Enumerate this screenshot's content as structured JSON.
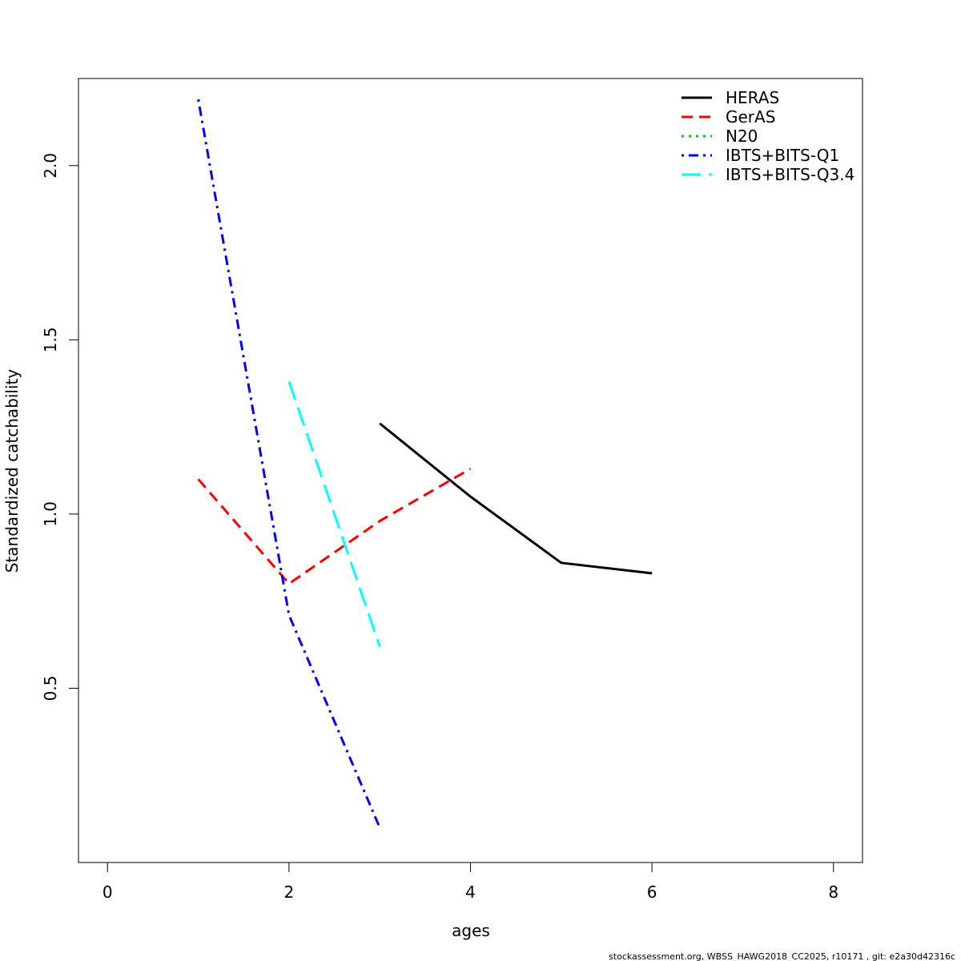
{
  "chart_data": {
    "type": "line",
    "title": "",
    "xlabel": "ages",
    "ylabel": "Standardized catchability",
    "xlim": [
      -0.32,
      8.32
    ],
    "ylim": [
      0.0,
      2.25
    ],
    "xticks": [
      0,
      2,
      4,
      6,
      8
    ],
    "xtick_labels": [
      "0",
      "2",
      "4",
      "6",
      "8"
    ],
    "yticks": [
      0.5,
      1.0,
      1.5,
      2.0
    ],
    "ytick_labels": [
      "0.5",
      "1.0",
      "1.5",
      "2.0"
    ],
    "grid": false,
    "legend_position": "top-right",
    "series": [
      {
        "name": "HERAS",
        "color": "#000000",
        "dash": "solid",
        "x": [
          3,
          4,
          5,
          6
        ],
        "y": [
          1.26,
          1.05,
          0.86,
          0.83
        ]
      },
      {
        "name": "GerAS",
        "color": "#ff0000",
        "dash": "dashed",
        "x": [
          1,
          2,
          3,
          4
        ],
        "y": [
          1.1,
          0.8,
          0.98,
          1.13
        ]
      },
      {
        "name": "N20",
        "color": "#00cd00",
        "dash": "dotted",
        "x": [],
        "y": []
      },
      {
        "name": "IBTS+BITS-Q1",
        "color": "#0000ff",
        "dash": "dotdash",
        "x": [
          1,
          2,
          3
        ],
        "y": [
          2.19,
          0.71,
          0.1
        ]
      },
      {
        "name": "IBTS+BITS-Q3.4",
        "color": "#00ffff",
        "dash": "longdash",
        "x": [
          2,
          3
        ],
        "y": [
          1.38,
          0.62
        ]
      }
    ]
  },
  "footer": "stockassessment.org, WBSS_HAWG2018_CC2025, r10171 , git: e2a30d42316c"
}
